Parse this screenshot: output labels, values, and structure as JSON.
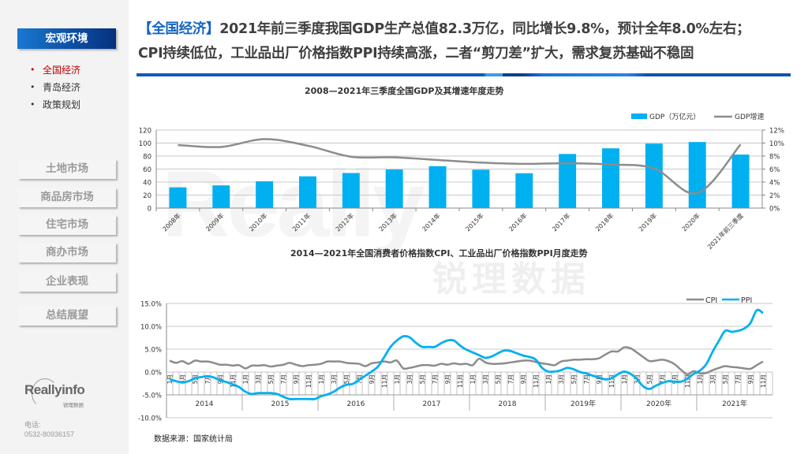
{
  "sidebar": {
    "section_label": "宏观环境",
    "sub_items": [
      {
        "label": "全国经济",
        "active": true
      },
      {
        "label": "青岛经济",
        "active": false
      },
      {
        "label": "政策规划",
        "active": false
      }
    ],
    "nav_buttons": [
      "土地市场",
      "商品房市场",
      "住宅市场",
      "商办市场",
      "企业表现",
      "总结展望"
    ],
    "logo": {
      "main": "Reallyinfo",
      "sub": "锐理数据"
    },
    "contact": {
      "label": "电话:",
      "phone": "0532-80936157"
    }
  },
  "header": {
    "tag": "【全国经济】",
    "line1": "2021年前三季度我国GDP生产总值82.3万亿，同比增长9.8%，预计全年8.0%左右；",
    "line2": "CPI持续低位，工业品出厂价格指数PPI持续高涨，二者“剪刀差”扩大，需求复苏基础不稳固"
  },
  "watermark": {
    "en": "Really",
    "cn": "锐理数据"
  },
  "source": "数据来源：国家统计局",
  "colors": {
    "accent": "#1565c0",
    "bar": "#00b0f0",
    "cpi": "#8c8c8c",
    "ppi": "#00b0f0",
    "active": "#c00000"
  },
  "chart_data": [
    {
      "type": "bar",
      "title": "2008—2021年三季度全国GDP及其增速年度走势",
      "categories": [
        "2008年",
        "2009年",
        "2010年",
        "2011年",
        "2012年",
        "2013年",
        "2014年",
        "2015年",
        "2016年",
        "2017年",
        "2018年",
        "2019年",
        "2020年",
        "2021年前三季度"
      ],
      "series": [
        {
          "name": "GDP（万亿元）",
          "type": "bar",
          "axis": "left",
          "values": [
            31.9,
            34.9,
            41.2,
            48.8,
            53.9,
            59.3,
            64.4,
            59.0,
            53.6,
            83.2,
            91.9,
            99.1,
            101.6,
            82.3
          ]
        },
        {
          "name": "GDP增速",
          "type": "line",
          "axis": "right",
          "values": [
            9.7,
            9.4,
            10.6,
            9.6,
            7.9,
            7.8,
            7.4,
            7.0,
            6.8,
            6.9,
            6.7,
            6.1,
            2.3,
            9.8
          ]
        }
      ],
      "y_left": {
        "min": 0,
        "max": 120,
        "ticks": [
          "0",
          "20",
          "40",
          "60",
          "80",
          "100",
          "120"
        ]
      },
      "y_right": {
        "min": 0,
        "max": 12,
        "ticks": [
          "0%",
          "2%",
          "4%",
          "6%",
          "8%",
          "10%",
          "12%"
        ]
      },
      "legend": {
        "position": "top-right",
        "items": [
          "GDP（万亿元）",
          "GDP增速"
        ]
      },
      "grid": true
    },
    {
      "type": "line",
      "title": "2014—2021年全国消费者价格指数CPI、工业品出厂价格指数PPI月度走势",
      "years": [
        "2014",
        "2015",
        "2016",
        "2017",
        "2018",
        "2019年",
        "2020年",
        "2021年"
      ],
      "month_labels": [
        "1月",
        "",
        "3月",
        "",
        "5月",
        "",
        "7月",
        "",
        "9月",
        "",
        "11月",
        ""
      ],
      "y": {
        "min": -10,
        "max": 15,
        "ticks": [
          "-10.0%",
          "-5.0%",
          "0.0%",
          "5.0%",
          "10.0%",
          "15.0%"
        ]
      },
      "legend": {
        "position": "top-right",
        "items": [
          "CPI",
          "PPI"
        ]
      },
      "grid": true,
      "series": [
        {
          "name": "CPI",
          "values": [
            2.5,
            2.0,
            2.4,
            1.8,
            2.5,
            2.3,
            2.3,
            2.0,
            1.6,
            1.6,
            1.4,
            1.5,
            0.8,
            1.4,
            1.4,
            1.5,
            1.2,
            1.4,
            1.6,
            2.0,
            1.6,
            1.3,
            1.5,
            1.6,
            1.8,
            2.3,
            2.3,
            2.3,
            2.0,
            1.9,
            1.8,
            1.3,
            1.9,
            2.1,
            2.3,
            2.1,
            2.5,
            0.8,
            0.9,
            1.2,
            1.5,
            1.5,
            1.4,
            1.8,
            1.6,
            1.9,
            1.7,
            1.8,
            1.5,
            2.9,
            2.1,
            1.8,
            1.8,
            1.9,
            2.1,
            2.3,
            2.5,
            2.5,
            2.2,
            1.9,
            1.7,
            1.5,
            2.3,
            2.5,
            2.7,
            2.7,
            2.8,
            2.8,
            3.0,
            3.8,
            4.5,
            4.5,
            5.4,
            5.2,
            4.3,
            3.3,
            2.4,
            2.5,
            2.7,
            2.4,
            1.7,
            0.5,
            -0.5,
            0.2,
            -0.3,
            -0.2,
            0.4,
            0.9,
            1.3,
            1.1,
            1.0,
            0.8,
            0.7,
            1.5,
            2.3
          ]
        },
        {
          "name": "PPI",
          "values": [
            -1.6,
            -2.0,
            -2.3,
            -2.0,
            -1.4,
            -1.1,
            -0.9,
            -1.2,
            -1.8,
            -2.2,
            -2.7,
            -3.3,
            -4.3,
            -4.8,
            -4.6,
            -4.6,
            -4.6,
            -4.8,
            -5.4,
            -5.9,
            -5.9,
            -5.9,
            -5.9,
            -5.9,
            -5.3,
            -4.9,
            -4.3,
            -3.4,
            -2.8,
            -2.6,
            -1.7,
            -0.8,
            0.1,
            1.2,
            3.3,
            5.5,
            6.9,
            7.8,
            7.6,
            6.4,
            5.5,
            5.5,
            5.5,
            6.3,
            6.9,
            6.9,
            5.8,
            4.9,
            4.3,
            3.7,
            3.1,
            3.4,
            4.1,
            4.7,
            4.6,
            4.1,
            3.6,
            3.3,
            2.7,
            0.9,
            0.1,
            0.1,
            0.4,
            0.9,
            0.6,
            0.0,
            -0.3,
            -0.8,
            -1.2,
            -1.6,
            -1.4,
            -0.5,
            0.1,
            -0.4,
            -1.5,
            -3.1,
            -3.7,
            -3.0,
            -2.4,
            -2.0,
            -2.1,
            -2.1,
            -1.5,
            -0.4,
            0.3,
            1.7,
            4.4,
            6.8,
            9.0,
            8.8,
            9.0,
            9.5,
            10.7,
            13.5,
            12.9
          ]
        }
      ]
    }
  ]
}
